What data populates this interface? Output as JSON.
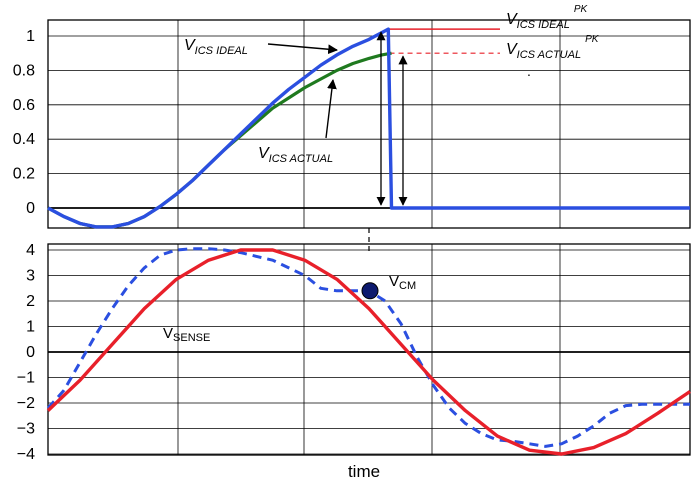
{
  "chart_data": [
    {
      "type": "line",
      "title": "",
      "xlabel": "",
      "ylabel": "",
      "xlim": [
        0,
        10
      ],
      "ylim": [
        -0.12,
        1.05
      ],
      "yticks": [
        "1",
        "0.8",
        "0.6",
        "0.4",
        "0.2",
        "0"
      ],
      "ytick_values": [
        1,
        0.8,
        0.6,
        0.4,
        0.2,
        0
      ],
      "grid": true,
      "series": [
        {
          "name": "V_ICS IDEAL",
          "color": "#2b4fe0",
          "x": [
            0,
            0.25,
            0.5,
            0.75,
            1,
            1.25,
            1.5,
            1.75,
            2,
            2.25,
            2.5,
            2.75,
            3,
            3.25,
            3.5,
            3.75,
            4,
            4.25,
            4.5,
            4.75,
            5,
            5.1,
            5.2,
            5.3,
            5.35,
            5.8,
            6.5,
            7.5,
            8.5,
            9.5,
            10
          ],
          "y": [
            0,
            -0.05,
            -0.09,
            -0.11,
            -0.11,
            -0.09,
            -0.05,
            0.01,
            0.08,
            0.16,
            0.25,
            0.34,
            0.43,
            0.52,
            0.61,
            0.69,
            0.76,
            0.83,
            0.89,
            0.94,
            0.98,
            1.0,
            1.02,
            1.04,
            0,
            0,
            0,
            0,
            0,
            0,
            0
          ]
        },
        {
          "name": "V_ICS ACTUAL",
          "color": "#1f7a1f",
          "x": [
            0,
            0.25,
            0.5,
            0.75,
            1,
            1.25,
            1.5,
            1.75,
            2,
            2.25,
            2.5,
            2.75,
            3,
            3.25,
            3.5,
            3.75,
            4,
            4.25,
            4.5,
            4.75,
            5,
            5.2,
            5.35
          ],
          "y": [
            0,
            -0.05,
            -0.09,
            -0.11,
            -0.11,
            -0.09,
            -0.05,
            0.01,
            0.08,
            0.16,
            0.25,
            0.34,
            0.42,
            0.5,
            0.58,
            0.64,
            0.7,
            0.75,
            0.8,
            0.84,
            0.87,
            0.89,
            0.9
          ]
        }
      ],
      "annotations": {
        "ideal_label": {
          "main": "V",
          "sub": "ICS  IDEAL"
        },
        "actual_label": {
          "main": "V",
          "sub": "ICS  ACTUAL"
        },
        "ideal_pk_label": {
          "main": "V",
          "sub": "ICS  IDEAL",
          "sup": "PK"
        },
        "actual_pk_label": {
          "main": "V",
          "sub": "ICS  ACTUAL",
          "sup": "PK"
        },
        "dot_mark": "."
      }
    },
    {
      "type": "line",
      "xlabel": "time",
      "ylabel": "",
      "xlim": [
        0,
        10
      ],
      "ylim": [
        -4,
        4
      ],
      "yticks": [
        "4",
        "3",
        "2",
        "1",
        "0",
        "−1",
        "−2",
        "−3",
        "−4"
      ],
      "ytick_values": [
        4,
        3,
        2,
        1,
        0,
        -1,
        -2,
        -3,
        -4
      ],
      "grid": true,
      "series": [
        {
          "name": "V_SENSE",
          "color": "#e8202a",
          "x": [
            0,
            0.5,
            1,
            1.5,
            2,
            2.5,
            3,
            3.5,
            4,
            4.5,
            5,
            5.5,
            6,
            6.5,
            7,
            7.5,
            8,
            8.5,
            9,
            9.5,
            10
          ],
          "y": [
            -2.3,
            -1.1,
            0.3,
            1.7,
            2.85,
            3.6,
            4.0,
            4.0,
            3.6,
            2.85,
            1.7,
            0.3,
            -1.1,
            -2.3,
            -3.3,
            -3.85,
            -4.0,
            -3.75,
            -3.2,
            -2.4,
            -1.55
          ]
        },
        {
          "name": "V_SENSE (dashed)",
          "color": "#2b4fe0",
          "x": [
            0,
            0.25,
            0.5,
            0.75,
            1,
            1.25,
            1.5,
            1.75,
            2,
            2.25,
            2.5,
            2.75,
            3,
            3.25,
            3.5,
            3.75,
            4,
            4.25,
            4.5,
            4.75,
            5,
            5.25,
            5.5,
            5.75,
            6,
            6.25,
            6.5,
            6.75,
            7,
            7.25,
            7.5,
            7.75,
            8,
            8.25,
            8.5,
            8.75,
            9,
            9.25,
            9.5,
            9.75,
            10
          ],
          "y": [
            -2.2,
            -1.5,
            -0.4,
            0.7,
            1.7,
            2.6,
            3.3,
            3.8,
            4.0,
            4.05,
            4.05,
            4.0,
            3.9,
            3.75,
            3.6,
            3.3,
            3.0,
            2.5,
            2.4,
            2.4,
            2.4,
            2.0,
            1.1,
            -0.2,
            -1.3,
            -2.2,
            -2.8,
            -3.2,
            -3.45,
            -3.5,
            -3.6,
            -3.7,
            -3.6,
            -3.3,
            -2.9,
            -2.4,
            -2.1,
            -2.05,
            -2.05,
            -2.05,
            -2.05
          ]
        }
      ],
      "annotations": {
        "sense_label": {
          "main": "V",
          "sub": "SENSE"
        },
        "cm_label": {
          "main": "V",
          "sub": "CM"
        },
        "cm_point": {
          "x": 5,
          "y": 2.4
        }
      }
    }
  ]
}
